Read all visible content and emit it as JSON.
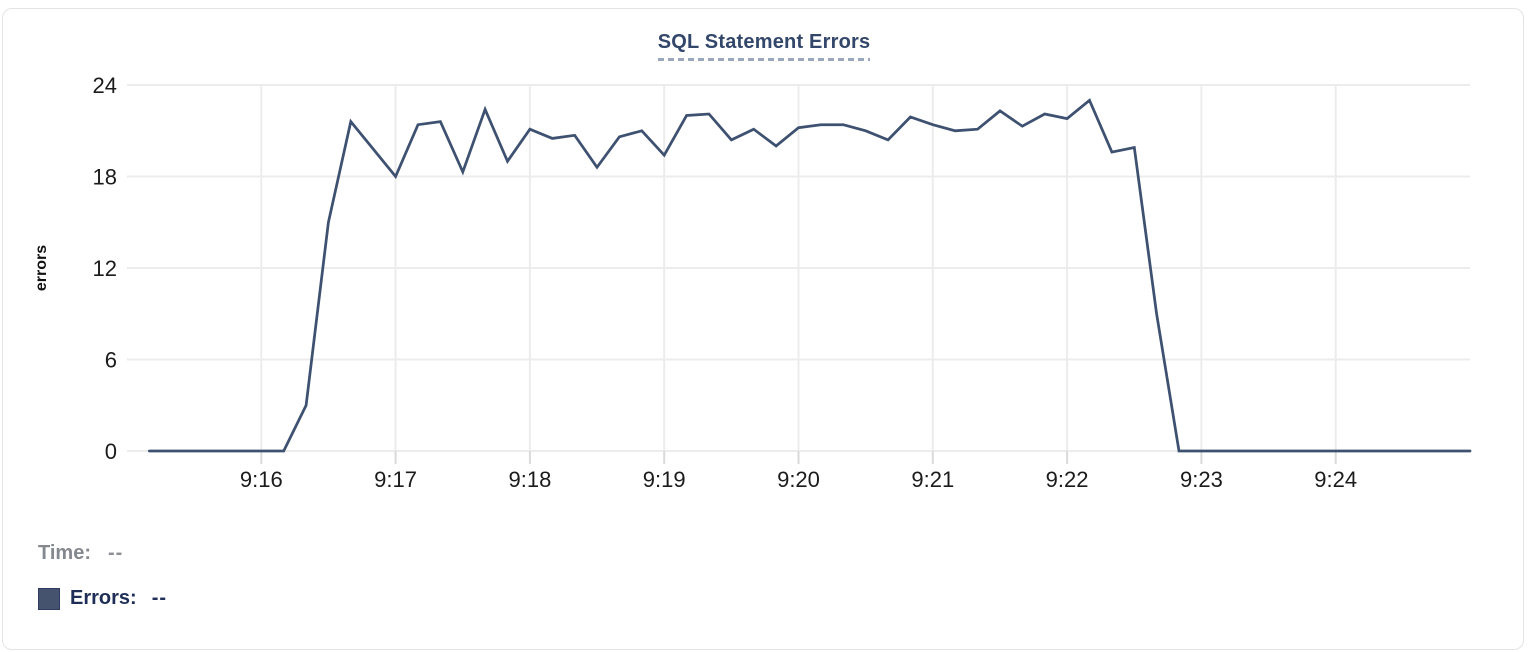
{
  "panel": {
    "title": "SQL Statement Errors"
  },
  "chart_data": {
    "type": "line",
    "title": "SQL Statement Errors",
    "xlabel": "",
    "ylabel": "errors",
    "x_tick_labels": [
      "9:16",
      "9:17",
      "9:18",
      "9:19",
      "9:20",
      "9:21",
      "9:22",
      "9:23",
      "9:24"
    ],
    "y_ticks": [
      0,
      6,
      12,
      18,
      24
    ],
    "ylim": [
      0,
      24
    ],
    "x_range": [
      "9:15:00",
      "9:25:00"
    ],
    "grid": true,
    "legend_position": "bottom-left",
    "colors": {
      "series_line": "#3e5170",
      "gridline": "#ececec",
      "axis_tick": "#dadada",
      "tick_label": "#1b1b1b",
      "title": "#33476b",
      "title_underline": "#9ba6bf"
    },
    "series": [
      {
        "name": "Errors",
        "color": "#3e5170",
        "x": [
          "9:15:10",
          "9:15:20",
          "9:15:30",
          "9:15:40",
          "9:15:50",
          "9:16:00",
          "9:16:10",
          "9:16:20",
          "9:16:30",
          "9:16:40",
          "9:16:50",
          "9:17:00",
          "9:17:10",
          "9:17:20",
          "9:17:30",
          "9:17:40",
          "9:17:50",
          "9:18:00",
          "9:18:10",
          "9:18:20",
          "9:18:30",
          "9:18:40",
          "9:18:50",
          "9:19:00",
          "9:19:10",
          "9:19:20",
          "9:19:30",
          "9:19:40",
          "9:19:50",
          "9:20:00",
          "9:20:10",
          "9:20:20",
          "9:20:30",
          "9:20:40",
          "9:20:50",
          "9:21:00",
          "9:21:10",
          "9:21:20",
          "9:21:30",
          "9:21:40",
          "9:21:50",
          "9:22:00",
          "9:22:10",
          "9:22:20",
          "9:22:30",
          "9:22:40",
          "9:22:50",
          "9:23:00",
          "9:23:10",
          "9:23:20",
          "9:23:30",
          "9:23:40",
          "9:23:50",
          "9:24:00",
          "9:24:10",
          "9:24:20",
          "9:24:30",
          "9:24:40",
          "9:24:50",
          "9:25:00"
        ],
        "values": [
          0,
          0,
          0,
          0,
          0,
          0,
          0,
          3,
          15,
          21.6,
          19.8,
          18,
          21.4,
          21.6,
          18.3,
          22.4,
          19,
          21.1,
          20.5,
          20.7,
          18.6,
          20.6,
          21,
          19.4,
          22,
          22.1,
          20.4,
          21.1,
          20,
          21.2,
          21.4,
          21.4,
          21,
          20.4,
          21.9,
          21.4,
          21,
          21.1,
          22.3,
          21.3,
          22.1,
          21.8,
          23,
          19.6,
          19.9,
          9,
          0,
          0,
          0,
          0,
          0,
          0,
          0,
          0,
          0,
          0,
          0,
          0,
          0,
          0
        ]
      }
    ]
  },
  "tooltip": {
    "time_label": "Time:",
    "time_value": "--",
    "errors_label": "Errors:",
    "errors_value": "--"
  }
}
